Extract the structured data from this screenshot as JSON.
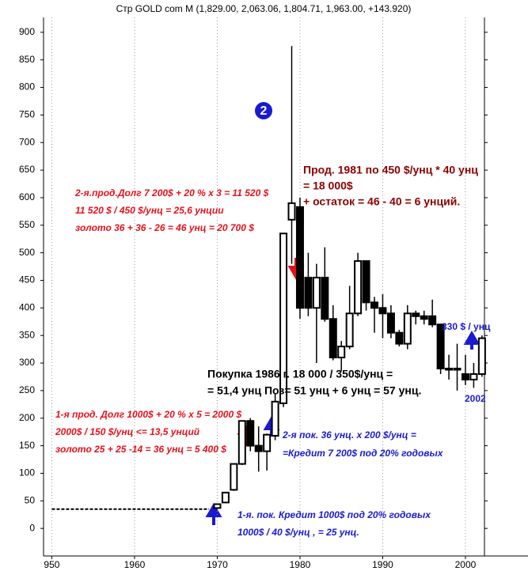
{
  "chart_data": {
    "type": "candlestick",
    "title": "Стр GOLD com M (1,829.00, 2,063.06, 1,804.71, 1,963.00, +143.920)",
    "x": [
      1970,
      1971,
      1972,
      1973,
      1974,
      1975,
      1976,
      1977,
      1978,
      1979,
      1980,
      1981,
      1982,
      1983,
      1984,
      1985,
      1986,
      1987,
      1988,
      1989,
      1990,
      1991,
      1992,
      1993,
      1994,
      1995,
      1996,
      1997,
      1998,
      1999,
      2000,
      2001,
      2002
    ],
    "open": [
      37,
      47,
      70,
      117,
      195,
      150,
      140,
      168,
      227,
      560,
      583,
      455,
      400,
      455,
      380,
      310,
      330,
      390,
      485,
      410,
      400,
      390,
      355,
      335,
      390,
      385,
      385,
      370,
      290,
      290,
      280,
      270,
      280
    ],
    "high": [
      44,
      66,
      118,
      195,
      200,
      185,
      172,
      245,
      535,
      875,
      600,
      500,
      480,
      510,
      405,
      340,
      440,
      500,
      485,
      420,
      425,
      405,
      360,
      405,
      395,
      395,
      415,
      370,
      315,
      335,
      315,
      300,
      350
    ],
    "low": [
      35,
      46,
      68,
      115,
      140,
      103,
      105,
      160,
      220,
      480,
      380,
      385,
      300,
      375,
      305,
      285,
      325,
      385,
      395,
      355,
      345,
      345,
      330,
      325,
      370,
      370,
      365,
      280,
      270,
      250,
      260,
      255,
      275
    ],
    "close": [
      44,
      65,
      117,
      195,
      150,
      140,
      170,
      230,
      535,
      590,
      400,
      400,
      455,
      380,
      310,
      330,
      390,
      485,
      410,
      400,
      390,
      355,
      335,
      390,
      385,
      380,
      370,
      290,
      290,
      290,
      270,
      280,
      345
    ],
    "line": {
      "x": [
        1950,
        1951,
        1952,
        1953,
        1954,
        1955,
        1956,
        1957,
        1958,
        1959,
        1960,
        1961,
        1962,
        1963,
        1964,
        1965,
        1966,
        1967,
        1968,
        1969
      ],
      "values": [
        35,
        35,
        35,
        35,
        35,
        35,
        35,
        35,
        35,
        35,
        35,
        35,
        35,
        35,
        35,
        35,
        35,
        35,
        35,
        35
      ]
    },
    "xlim": [
      1949,
      2002.3
    ],
    "xticks": [
      {
        "value": 1950,
        "label": "950"
      },
      1960,
      1970,
      1980,
      1990,
      2000
    ],
    "ylim": [
      -50,
      927
    ],
    "yticks": [
      0,
      50,
      100,
      150,
      200,
      250,
      300,
      350,
      400,
      450,
      500,
      550,
      600,
      650,
      700,
      750,
      800,
      850,
      900
    ],
    "up_color": "#ffffff",
    "down_color": "#000000",
    "badge": "2",
    "annotations": [
      {
        "color": "#e8101a",
        "lines": [
          "2-я.прод.Долг 7 200$ + 20 % х 3 = 11 520 $",
          "11 520 $  / 450 $/унц = 25,6  унции",
          "золото 36 + 36 - 26 = 46  унц = 20 700 $"
        ]
      },
      {
        "color": "#8b0000",
        "lines": [
          "Прод. 1981 по 450 $/унц * 40 унц",
          "= 18 000$",
          "+ остаток = 46 - 40 = 6 унций."
        ]
      },
      {
        "color": "#000000",
        "lines": [
          "Покупка 1986 г. 18 000 / 350$/унц =",
          "=  51,4 унц   Поз=  51 унц + 6 унц = 57 унц."
        ]
      },
      {
        "color": "#e8101a",
        "lines": [
          "1-я прод. Долг 1000$ + 20 % х 5 = 2000 $",
          "2000$  / 150 $/унц <= 13,5 унций",
          "золото 25 + 25 -14 = 36 унц = 5 400 $"
        ]
      },
      {
        "color": "#1a1ad0",
        "lines": [
          "2-я пок. 36 унц. х  200 $/унц =",
          "=Кредит 7 200$ под 20% годовых"
        ]
      },
      {
        "color": "#1a1ad0",
        "lines": [
          "1-я. пок. Кредит 1000$ под 20% годовых",
          "1000$ / 40 $/унц ,  = 25 унц."
        ]
      },
      {
        "color": "#1a1ad0",
        "lines": [
          "330 $ / унц"
        ]
      },
      {
        "color": "#1a1ad0",
        "lines": [
          "2002"
        ]
      }
    ]
  }
}
